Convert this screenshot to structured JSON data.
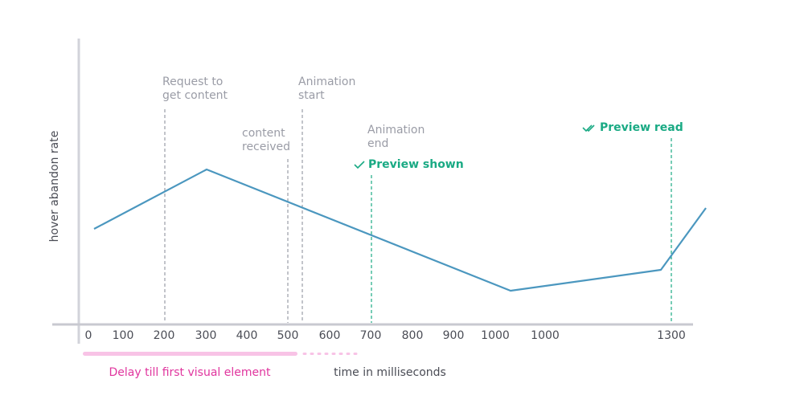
{
  "y_label": "hover abandon rate",
  "x_label": "time in milliseconds",
  "x_ticks": [
    "0",
    "100",
    "200",
    "300",
    "400",
    "500",
    "600",
    "700",
    "800",
    "900",
    "1000",
    "1000",
    "1300"
  ],
  "annotations": [
    {
      "lines": [
        "Request to",
        "get content"
      ]
    },
    {
      "lines": [
        "content",
        "received"
      ]
    },
    {
      "lines": [
        "Animation",
        "start"
      ]
    },
    {
      "lines": [
        "Animation",
        "end"
      ]
    }
  ],
  "milestones": [
    "Preview shown",
    "Preview read"
  ],
  "delay_label": "Delay till first visual element"
}
